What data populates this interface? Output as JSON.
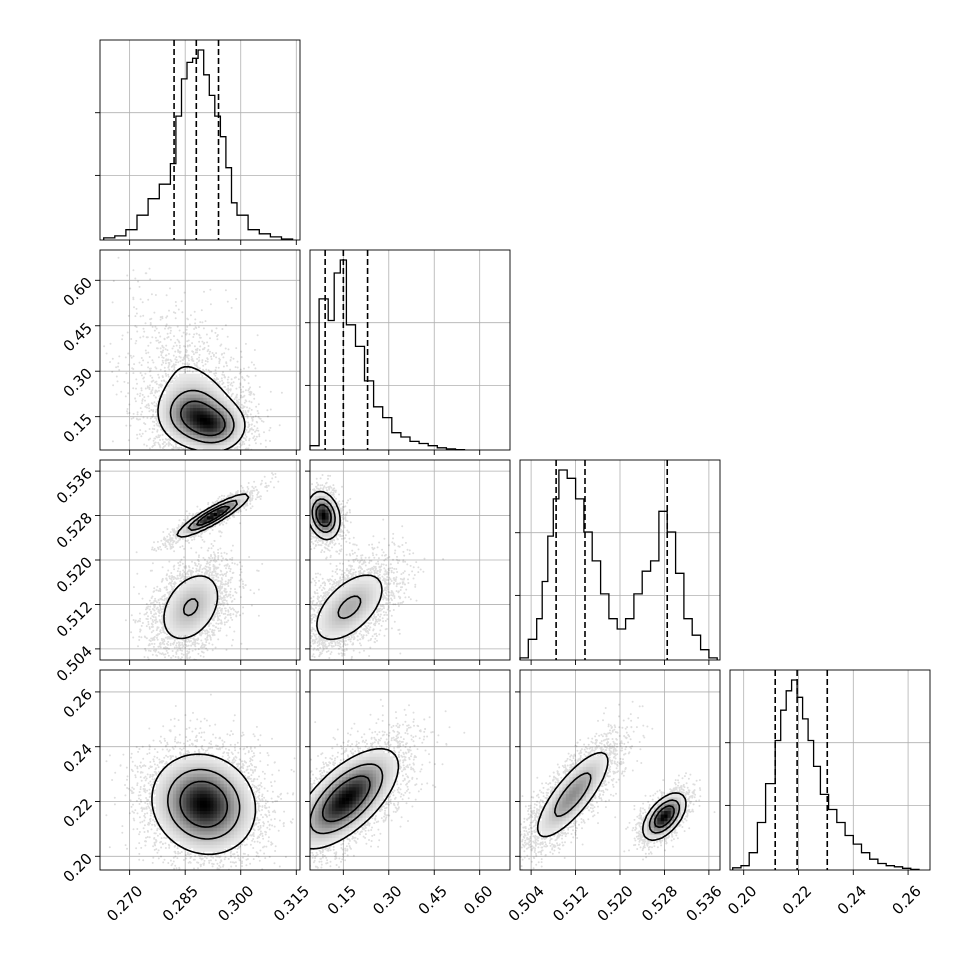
{
  "chart_data": {
    "type": "corner",
    "grid": true,
    "n_params": 4,
    "params": [
      {
        "range": [
          0.262,
          0.316
        ],
        "ticks": [
          0.27,
          0.285,
          0.3,
          0.315
        ],
        "tick_labels": [
          "0.270",
          "0.285",
          "0.300",
          "0.315"
        ],
        "quantiles": [
          0.282,
          0.288,
          0.294
        ],
        "hist": {
          "bins": [
            0.263,
            0.266,
            0.269,
            0.272,
            0.275,
            0.278,
            0.281,
            0.2825,
            0.284,
            0.2855,
            0.287,
            0.2885,
            0.29,
            0.2915,
            0.293,
            0.2945,
            0.296,
            0.2975,
            0.299,
            0.302,
            0.305,
            0.308,
            0.311
          ],
          "counts": [
            0.01,
            0.02,
            0.05,
            0.12,
            0.2,
            0.27,
            0.37,
            0.6,
            0.78,
            0.86,
            0.88,
            0.92,
            0.8,
            0.7,
            0.6,
            0.5,
            0.35,
            0.18,
            0.12,
            0.05,
            0.03,
            0.015,
            0.005
          ]
        }
      },
      {
        "range": [
          0.04,
          0.7
        ],
        "ticks": [
          0.15,
          0.3,
          0.45,
          0.6
        ],
        "tick_labels": [
          "0.15",
          "0.30",
          "0.45",
          "0.60"
        ],
        "quantiles": [
          0.09,
          0.15,
          0.23
        ],
        "hist": {
          "bins": [
            0.04,
            0.07,
            0.1,
            0.12,
            0.14,
            0.16,
            0.19,
            0.22,
            0.25,
            0.28,
            0.31,
            0.34,
            0.37,
            0.4,
            0.43,
            0.46,
            0.49,
            0.52
          ],
          "counts": [
            0.02,
            0.7,
            0.6,
            0.82,
            0.88,
            0.58,
            0.48,
            0.32,
            0.2,
            0.15,
            0.08,
            0.06,
            0.04,
            0.03,
            0.02,
            0.01,
            0.005,
            0.002
          ]
        }
      },
      {
        "range": [
          0.502,
          0.538
        ],
        "ticks": [
          0.504,
          0.512,
          0.52,
          0.528,
          0.536
        ],
        "tick_labels": [
          "0.504",
          "0.512",
          "0.520",
          "0.528",
          "0.536"
        ],
        "quantiles": [
          0.5085,
          0.5137,
          0.5285
        ],
        "hist": {
          "bins": [
            0.502,
            0.5035,
            0.505,
            0.506,
            0.507,
            0.508,
            0.509,
            0.5105,
            0.512,
            0.5135,
            0.515,
            0.5165,
            0.518,
            0.5195,
            0.521,
            0.5225,
            0.524,
            0.5255,
            0.527,
            0.5285,
            0.53,
            0.5315,
            0.533,
            0.5345,
            0.536
          ],
          "counts": [
            0.01,
            0.1,
            0.2,
            0.38,
            0.6,
            0.78,
            0.92,
            0.88,
            0.78,
            0.62,
            0.48,
            0.32,
            0.2,
            0.15,
            0.2,
            0.32,
            0.43,
            0.48,
            0.72,
            0.62,
            0.42,
            0.2,
            0.12,
            0.05,
            0.01
          ]
        }
      },
      {
        "range": [
          0.195,
          0.268
        ],
        "ticks": [
          0.2,
          0.22,
          0.24,
          0.26
        ],
        "tick_labels": [
          "0.20",
          "0.22",
          "0.24",
          "0.26"
        ],
        "quantiles": [
          0.2115,
          0.2195,
          0.2305
        ],
        "hist": {
          "bins": [
            0.196,
            0.199,
            0.202,
            0.205,
            0.208,
            0.2115,
            0.2135,
            0.2155,
            0.2175,
            0.2195,
            0.2215,
            0.2235,
            0.2255,
            0.228,
            0.231,
            0.234,
            0.237,
            0.24,
            0.243,
            0.246,
            0.249,
            0.252,
            0.255,
            0.258,
            0.261
          ],
          "counts": [
            0.01,
            0.02,
            0.08,
            0.22,
            0.4,
            0.6,
            0.74,
            0.83,
            0.88,
            0.8,
            0.7,
            0.6,
            0.48,
            0.35,
            0.28,
            0.22,
            0.16,
            0.12,
            0.08,
            0.05,
            0.03,
            0.02,
            0.015,
            0.008,
            0.003
          ]
        }
      }
    ],
    "hist_y_ticks_fraction": [
      0.34,
      0.67
    ],
    "joint": [
      {
        "row": 1,
        "col": 0,
        "modes": [
          {
            "mean": [
              0.287,
              0.16
            ],
            "sd": [
              0.0045,
              0.05
            ],
            "rho": 0.0,
            "w": 0.6
          },
          {
            "mean": [
              0.293,
              0.12
            ],
            "sd": [
              0.004,
              0.04
            ],
            "rho": 0.0,
            "w": 0.4
          },
          {
            "mean": [
              0.287,
              0.24
            ],
            "sd": [
              0.007,
              0.12
            ],
            "rho": -0.4,
            "w": 0.35
          }
        ]
      },
      {
        "row": 2,
        "col": 0,
        "modes": [
          {
            "mean": [
              0.2925,
              0.528
            ],
            "sd": [
              0.0045,
              0.0018
            ],
            "rho": 0.9,
            "w": 0.4
          },
          {
            "mean": [
              0.2865,
              0.5115
            ],
            "sd": [
              0.0045,
              0.0035
            ],
            "rho": 0.35,
            "w": 0.6
          }
        ]
      },
      {
        "row": 2,
        "col": 1,
        "modes": [
          {
            "mean": [
              0.085,
              0.528
            ],
            "sd": [
              0.025,
              0.002
            ],
            "rho": -0.2,
            "w": 0.4
          },
          {
            "mean": [
              0.17,
              0.5115
            ],
            "sd": [
              0.065,
              0.0035
            ],
            "rho": 0.55,
            "w": 0.6
          }
        ]
      },
      {
        "row": 3,
        "col": 0,
        "modes": [
          {
            "mean": [
              0.29,
              0.219
            ],
            "sd": [
              0.0065,
              0.0085
            ],
            "rho": -0.1,
            "w": 1.0
          }
        ]
      },
      {
        "row": 3,
        "col": 1,
        "modes": [
          {
            "mean": [
              0.16,
              0.221
            ],
            "sd": [
              0.08,
              0.0085
            ],
            "rho": 0.65,
            "w": 1.0
          }
        ]
      },
      {
        "row": 3,
        "col": 2,
        "modes": [
          {
            "mean": [
              0.5115,
              0.2225
            ],
            "sd": [
              0.0035,
              0.0085
            ],
            "rho": 0.8,
            "w": 0.6
          },
          {
            "mean": [
              0.528,
              0.2145
            ],
            "sd": [
              0.0018,
              0.004
            ],
            "rho": 0.55,
            "w": 0.4
          }
        ]
      }
    ]
  }
}
